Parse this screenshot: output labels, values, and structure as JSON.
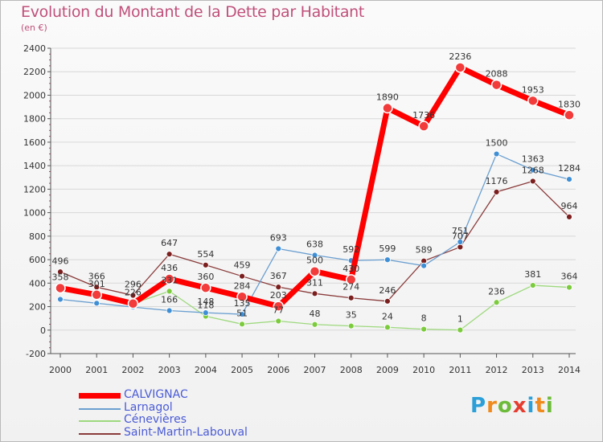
{
  "header": {
    "title": "Evolution du Montant de la Dette par Habitant",
    "unit": "(en €)"
  },
  "logo": {
    "letters": [
      "P",
      "r",
      "o",
      "x",
      "i",
      "t",
      "i"
    ],
    "colors": [
      "#2b9fd8",
      "#f08a1c",
      "#6dbb3a",
      "#e63c2e",
      "#2b9fd8",
      "#f08a1c",
      "#6dbb3a"
    ]
  },
  "chart_data": {
    "type": "line",
    "title": "Evolution du Montant de la Dette par Habitant",
    "ylabel": "(en €)",
    "ylim": [
      -200,
      2400
    ],
    "yticks": [
      -200,
      0,
      200,
      400,
      600,
      800,
      1000,
      1200,
      1400,
      1600,
      1800,
      2000,
      2200,
      2400
    ],
    "categories": [
      "2000",
      "2001",
      "2002",
      "2003",
      "2004",
      "2005",
      "2006",
      "2007",
      "2008",
      "2009",
      "2010",
      "2011",
      "2012",
      "2013",
      "2014"
    ],
    "grid": "horizontal",
    "legend": "bottom-left",
    "series": [
      {
        "name": "CALVIGNAC",
        "color": "#ff0000",
        "marker": "#f23b3b",
        "width": 7,
        "radius": 6,
        "values": [
          358,
          301,
          226,
          436,
          360,
          284,
          203,
          500,
          430,
          1890,
          1736,
          2236,
          2088,
          1953,
          1830
        ],
        "labels": [
          "358",
          "301",
          "226",
          "436",
          "360",
          "284",
          "203",
          "500",
          "430",
          "1890",
          "1736",
          "2236",
          "2088",
          "1953",
          "1830"
        ]
      },
      {
        "name": "Larnagol",
        "color": "#6a9fd0",
        "marker": "#3f8fd6",
        "width": 1.3,
        "radius": 3.5,
        "values": [
          262,
          229,
          196,
          166,
          148,
          135,
          693,
          638,
          592,
          599,
          548,
          751,
          1500,
          1363,
          1284
        ],
        "labels": [
          "",
          "",
          "",
          "166",
          "148",
          "135",
          "693",
          "638",
          "592",
          "599",
          "",
          "751",
          "1500",
          "1363",
          "1284"
        ]
      },
      {
        "name": "Cénevières",
        "color": "#9ed97e",
        "marker": "#7ccb3d",
        "width": 1.3,
        "radius": 3.5,
        "values": [
          377,
          304,
          226,
          331,
          118,
          51,
          77,
          48,
          35,
          24,
          8,
          1,
          236,
          381,
          364
        ],
        "labels": [
          "",
          "",
          "",
          "331",
          "118",
          "51",
          "77",
          "48",
          "35",
          "24",
          "8",
          "1",
          "236",
          "381",
          "364"
        ]
      },
      {
        "name": "Saint-Martin-Labouval",
        "color": "#8a3a3a",
        "marker": "#7b1e1e",
        "width": 1.3,
        "radius": 3.5,
        "values": [
          496,
          366,
          296,
          647,
          554,
          459,
          367,
          311,
          274,
          246,
          589,
          707,
          1176,
          1268,
          964
        ],
        "labels": [
          "496",
          "366",
          "296",
          "647",
          "554",
          "459",
          "367",
          "311",
          "274",
          "246",
          "589",
          "707",
          "1176",
          "1268",
          "964"
        ]
      }
    ]
  }
}
